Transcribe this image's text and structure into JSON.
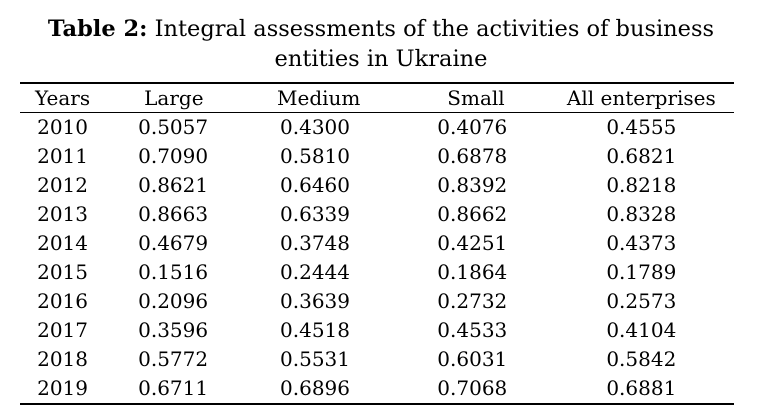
{
  "caption": {
    "label": "Table 2:",
    "line1": "Integral assessments of the activities of business",
    "line2": "entities in Ukraine"
  },
  "table": {
    "headers": [
      "Years",
      "Large",
      "Medium",
      "Small",
      "All enterprises"
    ],
    "rows": [
      [
        "2010",
        "0.5057",
        "0.4300",
        "0.4076",
        "0.4555"
      ],
      [
        "2011",
        "0.7090",
        "0.5810",
        "0.6878",
        "0.6821"
      ],
      [
        "2012",
        "0.8621",
        "0.6460",
        "0.8392",
        "0.8218"
      ],
      [
        "2013",
        "0.8663",
        "0.6339",
        "0.8662",
        "0.8328"
      ],
      [
        "2014",
        "0.4679",
        "0.3748",
        "0.4251",
        "0.4373"
      ],
      [
        "2015",
        "0.1516",
        "0.2444",
        "0.1864",
        "0.1789"
      ],
      [
        "2016",
        "0.2096",
        "0.3639",
        "0.2732",
        "0.2573"
      ],
      [
        "2017",
        "0.3596",
        "0.4518",
        "0.4533",
        "0.4104"
      ],
      [
        "2018",
        "0.5772",
        "0.5531",
        "0.6031",
        "0.5842"
      ],
      [
        "2019",
        "0.6711",
        "0.6896",
        "0.7068",
        "0.6881"
      ]
    ]
  }
}
